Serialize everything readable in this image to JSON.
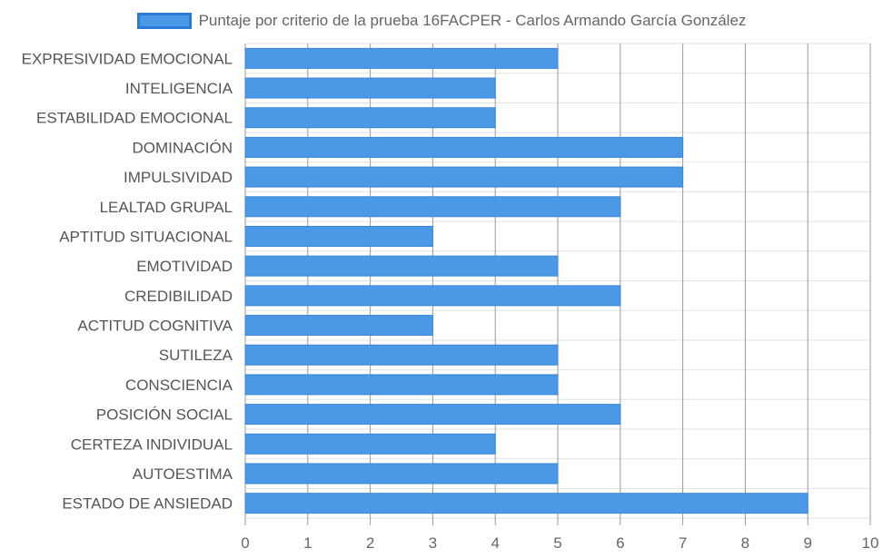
{
  "chart_data": {
    "type": "bar",
    "orientation": "horizontal",
    "title": "",
    "series": [
      {
        "name": "Puntaje por criterio de la prueba 16FACPER - Carlos Armando García González",
        "color": "#4a98e6",
        "values": [
          5,
          4,
          4,
          7,
          7,
          6,
          3,
          5,
          6,
          3,
          5,
          5,
          6,
          4,
          5,
          9
        ]
      }
    ],
    "categories": [
      "EXPRESIVIDAD EMOCIONAL",
      "INTELIGENCIA",
      "ESTABILIDAD EMOCIONAL",
      "DOMINACIÓN",
      "IMPULSIVIDAD",
      "LEALTAD GRUPAL",
      "APTITUD SITUACIONAL",
      "EMOTIVIDAD",
      "CREDIBILIDAD",
      "ACTITUD COGNITIVA",
      "SUTILEZA",
      "CONSCIENCIA",
      "POSICIÓN SOCIAL",
      "CERTEZA INDIVIDUAL",
      "AUTOESTIMA",
      "ESTADO DE ANSIEDAD"
    ],
    "xlim": [
      0,
      10
    ],
    "x_ticks": [
      "0",
      "1",
      "2",
      "3",
      "4",
      "5",
      "6",
      "7",
      "8",
      "9",
      "10"
    ],
    "grid": true,
    "legend_position": "top"
  }
}
